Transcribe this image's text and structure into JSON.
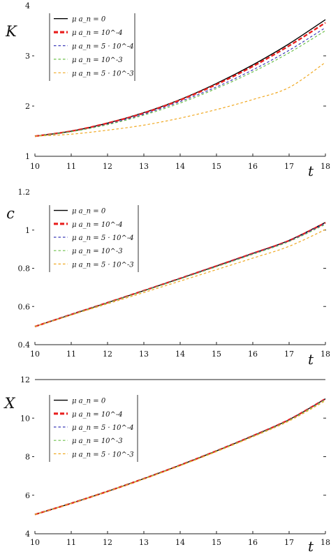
{
  "chart_data": [
    {
      "type": "line",
      "xlabel": "t",
      "ylabel": "K",
      "xlim": [
        10,
        18
      ],
      "ylim": [
        1,
        4
      ],
      "xticks": [
        "10",
        "11",
        "12",
        "13",
        "14",
        "15",
        "16",
        "17",
        "18"
      ],
      "yticks": [
        "1",
        "2",
        "3",
        "4"
      ],
      "grid": false,
      "legend_position": "top-left",
      "series": [
        {
          "name": "μ a_n = 0",
          "color": "#000000",
          "dash": "solid",
          "x": [
            10,
            11,
            12,
            13,
            14,
            15,
            16,
            17,
            18
          ],
          "y": [
            1.4,
            1.5,
            1.66,
            1.87,
            2.13,
            2.45,
            2.82,
            3.24,
            3.72
          ]
        },
        {
          "name": "μ a_n = 10^-4",
          "color": "#e8201f",
          "dash": "long",
          "x": [
            10,
            11,
            12,
            13,
            14,
            15,
            16,
            17,
            18
          ],
          "y": [
            1.4,
            1.5,
            1.66,
            1.86,
            2.12,
            2.43,
            2.79,
            3.2,
            3.66
          ]
        },
        {
          "name": "μ a_n = 5 · 10^-4",
          "color": "#3a3ab8",
          "dash": "short",
          "x": [
            10,
            11,
            12,
            13,
            14,
            15,
            16,
            17,
            18
          ],
          "y": [
            1.4,
            1.49,
            1.64,
            1.84,
            2.09,
            2.38,
            2.72,
            3.11,
            3.56
          ]
        },
        {
          "name": "μ a_n = 10^-3",
          "color": "#6cc04a",
          "dash": "short",
          "x": [
            10,
            11,
            12,
            13,
            14,
            15,
            16,
            17,
            18
          ],
          "y": [
            1.4,
            1.49,
            1.63,
            1.82,
            2.06,
            2.35,
            2.68,
            3.06,
            3.5
          ]
        },
        {
          "name": "μ a_n = 5 · 10^-3",
          "color": "#f0a820",
          "dash": "short",
          "x": [
            10,
            11,
            12,
            13,
            14,
            15,
            16,
            17,
            18
          ],
          "y": [
            1.4,
            1.44,
            1.52,
            1.62,
            1.76,
            1.93,
            2.13,
            2.37,
            2.87
          ]
        }
      ]
    },
    {
      "type": "line",
      "xlabel": "t",
      "ylabel": "c",
      "xlim": [
        10,
        18
      ],
      "ylim": [
        0.4,
        1.2
      ],
      "xticks": [
        "10",
        "11",
        "12",
        "13",
        "14",
        "15",
        "16",
        "17",
        "18"
      ],
      "yticks": [
        "0.4",
        "0.6",
        "0.8",
        "1",
        "1.2"
      ],
      "grid": false,
      "legend_position": "top-left",
      "series": [
        {
          "name": "μ a_n = 0",
          "color": "#000000",
          "dash": "solid",
          "x": [
            10,
            11,
            12,
            13,
            14,
            15,
            16,
            17,
            18
          ],
          "y": [
            0.495,
            0.558,
            0.62,
            0.683,
            0.747,
            0.812,
            0.878,
            0.946,
            1.04
          ]
        },
        {
          "name": "μ a_n = 10^-4",
          "color": "#e8201f",
          "dash": "long",
          "x": [
            10,
            11,
            12,
            13,
            14,
            15,
            16,
            17,
            18
          ],
          "y": [
            0.495,
            0.558,
            0.62,
            0.683,
            0.747,
            0.812,
            0.878,
            0.945,
            1.038
          ]
        },
        {
          "name": "μ a_n = 5 · 10^-4",
          "color": "#3a3ab8",
          "dash": "short",
          "x": [
            10,
            11,
            12,
            13,
            14,
            15,
            16,
            17,
            18
          ],
          "y": [
            0.495,
            0.558,
            0.619,
            0.682,
            0.746,
            0.81,
            0.876,
            0.943,
            1.035
          ]
        },
        {
          "name": "μ a_n = 10^-3",
          "color": "#6cc04a",
          "dash": "short",
          "x": [
            10,
            11,
            12,
            13,
            14,
            15,
            16,
            17,
            18
          ],
          "y": [
            0.495,
            0.557,
            0.619,
            0.681,
            0.744,
            0.808,
            0.873,
            0.94,
            1.03
          ]
        },
        {
          "name": "μ a_n = 5 · 10^-3",
          "color": "#f0a820",
          "dash": "short",
          "x": [
            10,
            11,
            12,
            13,
            14,
            15,
            16,
            17,
            18
          ],
          "y": [
            0.495,
            0.555,
            0.614,
            0.673,
            0.733,
            0.793,
            0.853,
            0.915,
            1.003
          ]
        }
      ]
    },
    {
      "type": "line",
      "xlabel": "t",
      "ylabel": "X",
      "xlim": [
        10,
        18
      ],
      "ylim": [
        4,
        12
      ],
      "xticks": [
        "10",
        "11",
        "12",
        "13",
        "14",
        "15",
        "16",
        "17",
        "18"
      ],
      "yticks": [
        "4",
        "6",
        "8",
        "10",
        "12"
      ],
      "grid": false,
      "legend_position": "top-left",
      "series": [
        {
          "name": "μ a_n = 0",
          "color": "#000000",
          "dash": "solid",
          "x": [
            10,
            11,
            12,
            13,
            14,
            15,
            16,
            17,
            18
          ],
          "y": [
            5.0,
            5.58,
            6.2,
            6.86,
            7.56,
            8.3,
            9.08,
            9.92,
            11.0
          ]
        },
        {
          "name": "μ a_n = 10^-4",
          "color": "#e8201f",
          "dash": "long",
          "x": [
            10,
            11,
            12,
            13,
            14,
            15,
            16,
            17,
            18
          ],
          "y": [
            5.0,
            5.58,
            6.2,
            6.86,
            7.56,
            8.3,
            9.08,
            9.92,
            11.0
          ]
        },
        {
          "name": "μ a_n = 5 · 10^-4",
          "color": "#3a3ab8",
          "dash": "short",
          "x": [
            10,
            11,
            12,
            13,
            14,
            15,
            16,
            17,
            18
          ],
          "y": [
            5.0,
            5.58,
            6.2,
            6.86,
            7.55,
            8.29,
            9.07,
            9.9,
            10.98
          ]
        },
        {
          "name": "μ a_n = 10^-3",
          "color": "#6cc04a",
          "dash": "short",
          "x": [
            10,
            11,
            12,
            13,
            14,
            15,
            16,
            17,
            18
          ],
          "y": [
            5.0,
            5.58,
            6.2,
            6.86,
            7.55,
            8.29,
            9.06,
            9.89,
            10.96
          ]
        },
        {
          "name": "μ a_n = 5 · 10^-3",
          "color": "#f0a820",
          "dash": "short",
          "x": [
            10,
            11,
            12,
            13,
            14,
            15,
            16,
            17,
            18
          ],
          "y": [
            5.0,
            5.57,
            6.19,
            6.84,
            7.53,
            8.26,
            9.03,
            9.85,
            10.9
          ]
        }
      ]
    }
  ]
}
